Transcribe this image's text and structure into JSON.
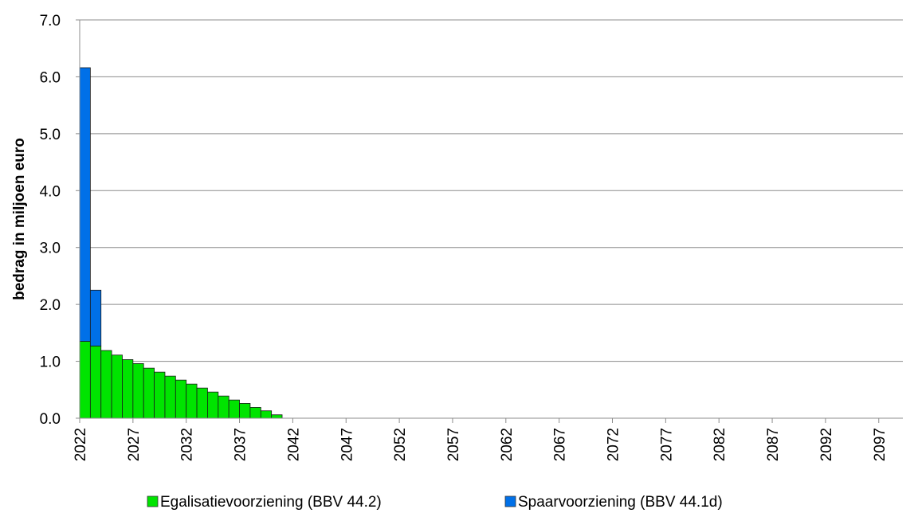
{
  "chart_data": {
    "type": "bar",
    "stacked": true,
    "title": "",
    "xlabel": "",
    "ylabel": "bedrag in miljoen euro",
    "ylim": [
      0,
      7
    ],
    "yticks": [
      "0.0",
      "1.0",
      "2.0",
      "3.0",
      "4.0",
      "5.0",
      "6.0",
      "7.0"
    ],
    "x_range": [
      2022,
      2100
    ],
    "xtick_labels": [
      "2022",
      "2027",
      "2032",
      "2037",
      "2042",
      "2047",
      "2052",
      "2057",
      "2062",
      "2067",
      "2072",
      "2077",
      "2082",
      "2087",
      "2092",
      "2097"
    ],
    "grid": "horizontal",
    "legend_position": "bottom",
    "categories": [
      2022,
      2023,
      2024,
      2025,
      2026,
      2027,
      2028,
      2029,
      2030,
      2031,
      2032,
      2033,
      2034,
      2035,
      2036,
      2037,
      2038,
      2039,
      2040,
      2041
    ],
    "series": [
      {
        "name": "Egalisatievoorziening (BBV 44.2)",
        "color": "#00e400",
        "values": [
          1.35,
          1.27,
          1.19,
          1.11,
          1.03,
          0.96,
          0.88,
          0.81,
          0.74,
          0.67,
          0.6,
          0.53,
          0.46,
          0.39,
          0.32,
          0.26,
          0.19,
          0.13,
          0.06,
          0.0
        ]
      },
      {
        "name": "Spaarvoorziening (BBV 44.1d)",
        "color": "#0070e8",
        "values": [
          4.81,
          0.98,
          0,
          0,
          0,
          0,
          0,
          0,
          0,
          0,
          0,
          0,
          0,
          0,
          0,
          0,
          0,
          0,
          0,
          0
        ]
      }
    ]
  }
}
